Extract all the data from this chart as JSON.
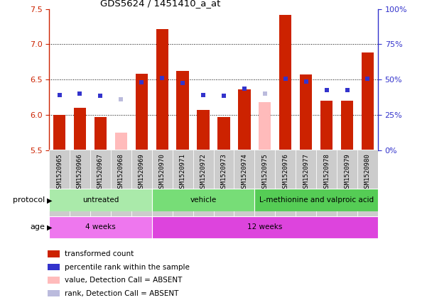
{
  "title": "GDS5624 / 1451410_a_at",
  "samples": [
    "GSM1520965",
    "GSM1520966",
    "GSM1520967",
    "GSM1520968",
    "GSM1520969",
    "GSM1520970",
    "GSM1520971",
    "GSM1520972",
    "GSM1520973",
    "GSM1520974",
    "GSM1520975",
    "GSM1520976",
    "GSM1520977",
    "GSM1520978",
    "GSM1520979",
    "GSM1520980"
  ],
  "bar_values": [
    6.0,
    6.1,
    5.97,
    5.75,
    6.58,
    7.22,
    6.62,
    6.07,
    5.97,
    6.36,
    6.18,
    7.42,
    6.57,
    6.2,
    6.2,
    6.88
  ],
  "absent_bar": [
    false,
    false,
    false,
    true,
    false,
    false,
    false,
    false,
    false,
    false,
    true,
    false,
    false,
    false,
    false,
    false
  ],
  "rank_values": [
    6.28,
    6.3,
    6.27,
    6.22,
    6.46,
    6.52,
    6.45,
    6.28,
    6.27,
    6.37,
    6.3,
    6.51,
    6.47,
    6.35,
    6.35,
    6.51
  ],
  "rank_absent": [
    false,
    false,
    false,
    true,
    false,
    false,
    false,
    false,
    false,
    false,
    true,
    false,
    false,
    false,
    false,
    false
  ],
  "ylim": [
    5.5,
    7.5
  ],
  "yticks_left": [
    5.5,
    6.0,
    6.5,
    7.0,
    7.5
  ],
  "yticks_right_labels": [
    "0%",
    "25%",
    "50%",
    "75%",
    "100%"
  ],
  "left_color": "#cc2200",
  "right_color": "#3333cc",
  "bar_color": "#cc2200",
  "absent_bar_color": "#ffbbbb",
  "rank_color": "#3333cc",
  "absent_rank_color": "#bbbbdd",
  "bar_width": 0.6,
  "dotted_yticks": [
    6.0,
    6.5,
    7.0
  ],
  "protocol_groups": [
    {
      "label": "untreated",
      "start": 0,
      "end": 4,
      "color": "#aaeaaa"
    },
    {
      "label": "vehicle",
      "start": 5,
      "end": 9,
      "color": "#77dd77"
    },
    {
      "label": "L-methionine and valproic acid",
      "start": 10,
      "end": 15,
      "color": "#55cc55"
    }
  ],
  "age_groups": [
    {
      "label": "4 weeks",
      "start": 0,
      "end": 4,
      "color": "#ee77ee"
    },
    {
      "label": "12 weeks",
      "start": 5,
      "end": 15,
      "color": "#dd44dd"
    }
  ],
  "legend_items": [
    {
      "color": "#cc2200",
      "label": "transformed count",
      "marker": "square"
    },
    {
      "color": "#3333cc",
      "label": "percentile rank within the sample",
      "marker": "square"
    },
    {
      "color": "#ffbbbb",
      "label": "value, Detection Call = ABSENT",
      "marker": "square"
    },
    {
      "color": "#bbbbdd",
      "label": "rank, Detection Call = ABSENT",
      "marker": "square"
    }
  ],
  "protocol_label": "protocol",
  "age_label": "age",
  "xtick_bg": "#cccccc",
  "plot_bg": "white",
  "fig_bg": "white"
}
